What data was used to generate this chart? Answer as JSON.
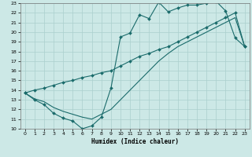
{
  "xlabel": "Humidex (Indice chaleur)",
  "bg_color": "#cce8e6",
  "grid_color": "#aacfcd",
  "line_color": "#1a6b6b",
  "xlim": [
    -0.5,
    23.5
  ],
  "ylim": [
    10,
    23
  ],
  "xticks": [
    0,
    1,
    2,
    3,
    4,
    5,
    6,
    7,
    8,
    9,
    10,
    11,
    12,
    13,
    14,
    15,
    16,
    17,
    18,
    19,
    20,
    21,
    22,
    23
  ],
  "yticks": [
    10,
    11,
    12,
    13,
    14,
    15,
    16,
    17,
    18,
    19,
    20,
    21,
    22,
    23
  ],
  "line1_x": [
    0,
    1,
    2,
    3,
    4,
    5,
    6,
    7,
    8,
    9,
    10,
    11,
    12,
    13,
    14,
    15,
    16,
    17,
    18,
    19,
    20,
    21,
    22,
    23
  ],
  "line1_y": [
    13.7,
    13.0,
    12.5,
    11.6,
    11.1,
    10.8,
    10.0,
    10.3,
    11.2,
    14.2,
    19.5,
    19.9,
    21.8,
    21.4,
    23.1,
    22.1,
    22.5,
    22.8,
    22.8,
    23.0,
    23.2,
    22.2,
    19.4,
    18.5
  ],
  "line2_x": [
    0,
    1,
    2,
    3,
    4,
    5,
    6,
    7,
    8,
    9,
    10,
    11,
    12,
    13,
    14,
    15,
    16,
    17,
    18,
    19,
    20,
    21,
    22,
    23
  ],
  "line2_y": [
    13.7,
    14.0,
    14.2,
    14.5,
    14.8,
    15.0,
    15.3,
    15.5,
    15.8,
    16.0,
    16.5,
    17.0,
    17.5,
    17.8,
    18.2,
    18.5,
    19.0,
    19.5,
    20.0,
    20.5,
    21.0,
    21.5,
    22.0,
    18.5
  ],
  "line3_x": [
    0,
    1,
    2,
    3,
    4,
    5,
    6,
    7,
    8,
    9,
    10,
    11,
    12,
    13,
    14,
    15,
    16,
    17,
    18,
    19,
    20,
    21,
    22,
    23
  ],
  "line3_y": [
    13.7,
    13.1,
    12.8,
    12.2,
    11.8,
    11.5,
    11.2,
    11.0,
    11.5,
    12.0,
    13.0,
    14.0,
    15.0,
    16.0,
    17.0,
    17.8,
    18.5,
    19.0,
    19.5,
    20.0,
    20.5,
    21.0,
    21.5,
    18.5
  ]
}
